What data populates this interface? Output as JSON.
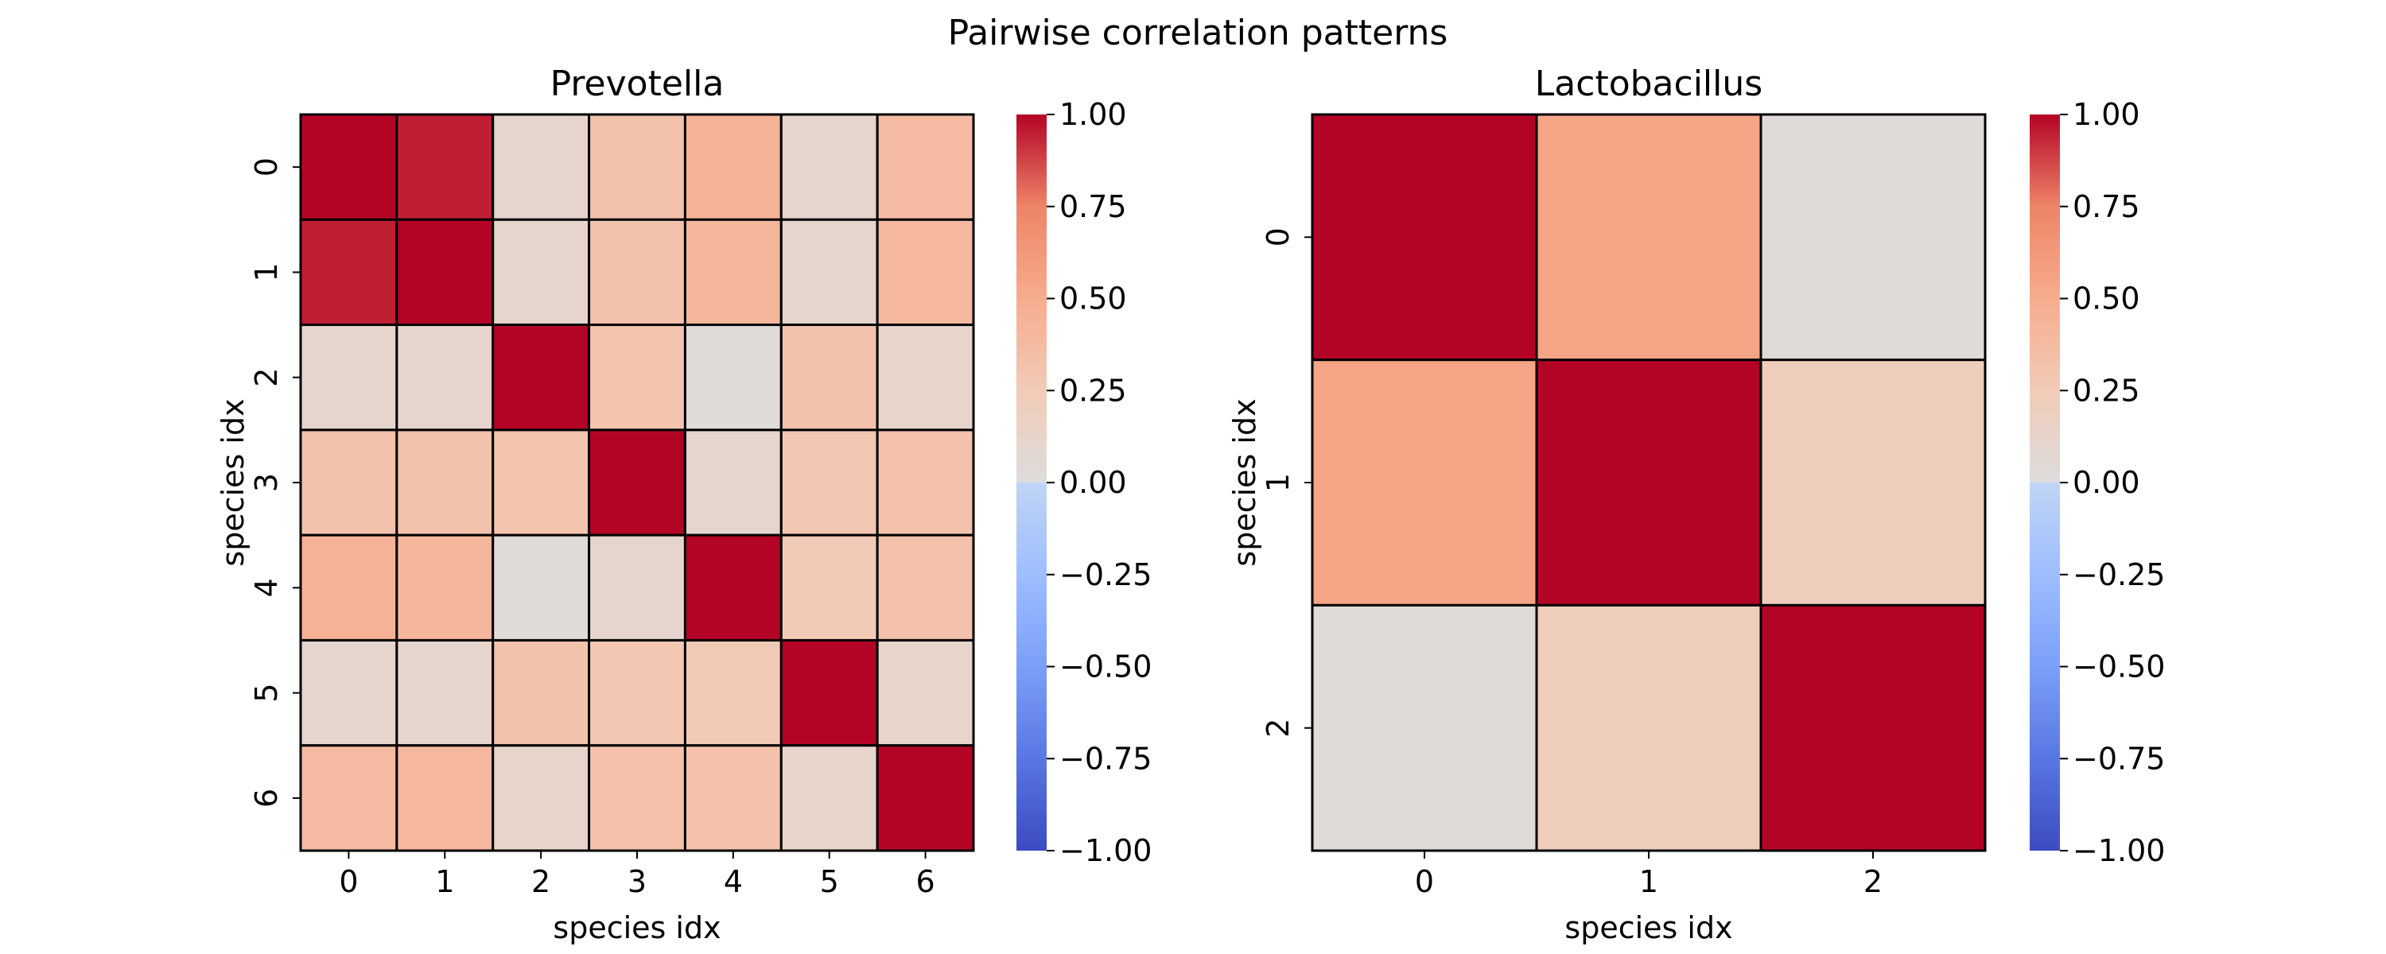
{
  "figure": {
    "title": "Pairwise correlation patterns"
  },
  "chart_data": [
    {
      "type": "heatmap",
      "title": "Prevotella",
      "xlabel": "species idx",
      "ylabel": "species idx",
      "x_ticks": [
        "0",
        "1",
        "2",
        "3",
        "4",
        "5",
        "6"
      ],
      "y_ticks": [
        "0",
        "1",
        "2",
        "3",
        "4",
        "5",
        "6"
      ],
      "colormap": "coolwarm",
      "vmin": -1.0,
      "vmax": 1.0,
      "colorbar_ticks": [
        "1.00",
        "0.75",
        "0.50",
        "0.25",
        "0.00",
        "−0.25",
        "−0.50",
        "−0.75",
        "−1.00"
      ],
      "matrix": [
        [
          1.0,
          0.95,
          0.1,
          0.32,
          0.45,
          0.1,
          0.38
        ],
        [
          0.95,
          1.0,
          0.1,
          0.32,
          0.42,
          0.1,
          0.4
        ],
        [
          0.1,
          0.1,
          1.0,
          0.3,
          0.02,
          0.32,
          0.12
        ],
        [
          0.32,
          0.32,
          0.3,
          1.0,
          0.1,
          0.28,
          0.33
        ],
        [
          0.45,
          0.42,
          0.02,
          0.1,
          1.0,
          0.25,
          0.33
        ],
        [
          0.1,
          0.1,
          0.32,
          0.28,
          0.25,
          1.0,
          0.12
        ],
        [
          0.38,
          0.4,
          0.12,
          0.33,
          0.33,
          0.12,
          1.0
        ]
      ]
    },
    {
      "type": "heatmap",
      "title": "Lactobacillus",
      "xlabel": "species idx",
      "ylabel": "species idx",
      "x_ticks": [
        "0",
        "1",
        "2"
      ],
      "y_ticks": [
        "0",
        "1",
        "2"
      ],
      "colormap": "coolwarm",
      "vmin": -1.0,
      "vmax": 1.0,
      "colorbar_ticks": [
        "1.00",
        "0.75",
        "0.50",
        "0.25",
        "0.00",
        "−0.25",
        "−0.50",
        "−0.75",
        "−1.00"
      ],
      "matrix": [
        [
          1.0,
          0.55,
          0.02
        ],
        [
          0.55,
          1.0,
          0.22
        ],
        [
          0.02,
          0.22,
          1.0
        ]
      ]
    }
  ]
}
